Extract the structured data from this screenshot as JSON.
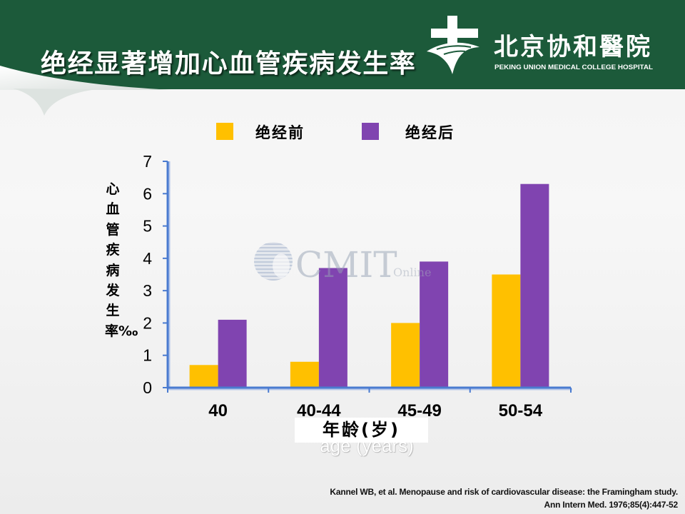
{
  "slide": {
    "title": "绝经显著增加心血管疾病发生率",
    "logo": {
      "name_cn": "北京协和醫院",
      "name_en": "PEKING UNION MEDICAL COLLEGE HOSPITAL",
      "emblem_icon": "hospital-cross-emblem"
    },
    "watermark": {
      "main": "CMIT",
      "sub": "Online",
      "icon": "globe-icon"
    },
    "citation": {
      "line1": "Kannel WB, et al. Menopause and risk of cardiovascular disease: the Framingham study.",
      "line2": "Ann Intern Med. 1976;85(4):447-52"
    }
  },
  "colors": {
    "header_green": "#1c5a3a",
    "premenopause": "#ffc000",
    "postmenopause": "#8044b0",
    "axis": "#4a7bd0",
    "axis_shadow": "#b3c6ea"
  },
  "chart_data": {
    "type": "bar",
    "categories": [
      "40",
      "40-44",
      "45-49",
      "50-54"
    ],
    "series": [
      {
        "name": "绝经前",
        "values": [
          0.7,
          0.8,
          2.0,
          3.5
        ]
      },
      {
        "name": "绝经后",
        "values": [
          2.1,
          3.7,
          3.9,
          6.3
        ]
      }
    ],
    "ylim": [
      0,
      7
    ],
    "yticks": [
      0,
      1,
      2,
      3,
      4,
      5,
      6,
      7
    ],
    "ylabel": "心血管疾病发生率‰",
    "xlabel": "年龄(岁)",
    "xlabel_secondary": "age (years)",
    "legend": "top",
    "grid": false
  }
}
